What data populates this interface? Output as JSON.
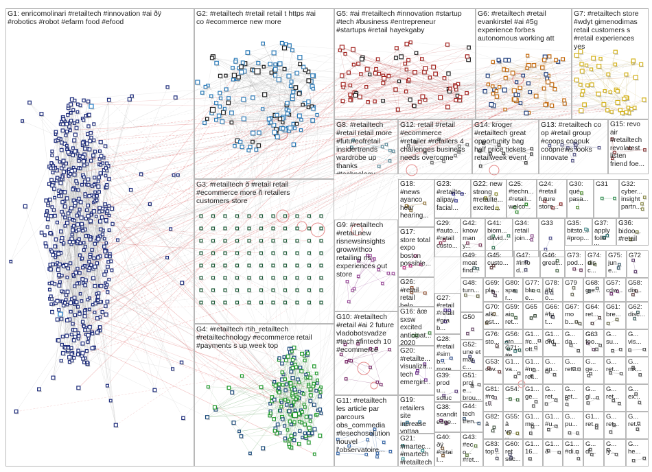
{
  "groups": [
    {
      "id": "G1",
      "label": "G1: enricomolinari #retailtech #innovation #ai ðÿ\n#robotics #robot #efarm food #efood",
      "color": "#1b2a7a"
    },
    {
      "id": "G2",
      "label": "G2: #retailtech #retail retail t https #ai\nco #ecommerce new more",
      "color": "#2a7ab8"
    },
    {
      "id": "G3",
      "label": "G3: #retailtech ð #retail retail\n#ecommerce more ñ retailers\ncustomers store",
      "color": "#1f5c3a"
    },
    {
      "id": "G4",
      "label": "G4: #retailtech rtih_retailtech\n#retailtechnology #ecommerce retail\n#payments s up week top",
      "color": "#1e9a2a"
    },
    {
      "id": "G5",
      "label": "G5: #ai #retailtech #innovation #startup\n#tech #business #entrepreneur\n#startups #retail hayekgaby",
      "color": "#a3231f"
    },
    {
      "id": "G6",
      "label": "G6: #retailtech #retail\nevankirstel #ai #5g\nexperience forbes\nautonomous working att",
      "color": "#c46a0e"
    },
    {
      "id": "G7",
      "label": "G7: #retailtech store\n#wdyt gimenodimas\nretail customers s\n#retail experiences\nyes",
      "color": "#d4b21a"
    },
    {
      "id": "G8",
      "label": "G8: #retailtech\n#retail retail more\n#futureofretail\ninsidertrends\nwardrobe up\nthanks\n#technology",
      "color": "#5a8a9a"
    },
    {
      "id": "G9",
      "label": "G9: #retailtech\n#retail new\nrisnewsinsights\ngrowwithco\nretailing ris\nexperiences out\nstore",
      "color": "#9a4a9a"
    },
    {
      "id": "G10",
      "label": "G10: #retailtech\n#retail #ai 2 future\nvladobotsvadze\n#tech #fintech 10\n#ecommerce",
      "color": "#7a2a6a"
    },
    {
      "id": "G11",
      "label": "G11: #retailtech\nles article par\nparcours\nobs_commedia\n#lesechosolution\nnouvel\nl'observatoire...",
      "color": "#3a6aaa"
    },
    {
      "id": "G12",
      "label": "G12: retail #retail\n#ecommerce\n#retailer #retailers 4\nchallenges business\nneeds overcome",
      "color": "#6a6a6a"
    },
    {
      "id": "G13",
      "label": "G13: #retailtech co\nop #retail group\n#coops coopuk\ncoopnews looks\ninnovate",
      "color": "#5a5a8a"
    },
    {
      "id": "G14",
      "label": "G14: kroger\n#retailtech great\nopportunity bag\nhalf price tickets\nretailweek event",
      "color": "#3a3a3a"
    },
    {
      "id": "G15",
      "label": "G15: revo\nair\n#retailtech\nrevolatest\nlisten\nfriend foe...",
      "color": "#8a3a3a"
    },
    {
      "id": "G16",
      "label": "G16: âœ\nsxsw\nexcited\nanticipat...\n2020",
      "color": "#4a8a4a"
    },
    {
      "id": "G17",
      "label": "G17:\nstore total\nexpo\nboston\npossible...",
      "color": "#c03a8a"
    },
    {
      "id": "G18",
      "label": "G18:\n#news\nayanco\nhear\nhearing...",
      "color": "#8a6a2a"
    },
    {
      "id": "G19",
      "label": "G19:\nretailers\nsite\nincrease\nyottaa\n...",
      "color": "#2a6a8a"
    },
    {
      "id": "G20",
      "label": "G20:\n#retailte...\nvisualiza...\ntech\nemergin...",
      "color": "#6a2a8a"
    },
    {
      "id": "G21",
      "label": "G21:\n#martec...\n#martech\n#retailtech",
      "color": "#2a8a8a"
    },
    {
      "id": "G22",
      "label": "G22: new\nstrong\n#retailte...\nexcited...",
      "color": "#8a8a2a"
    },
    {
      "id": "G23",
      "label": "G23:\n#retailte...\nalipay\nfacial...",
      "color": "#2a2a8a"
    },
    {
      "id": "G24",
      "label": "G24:\n#retail\nfuture\nstore...",
      "color": "#8a2a2a"
    },
    {
      "id": "G25",
      "label": "G25:\n#techn...\n#retail...\nwelco...",
      "color": "#2a8a2a"
    },
    {
      "id": "G26",
      "label": "G26:\n#retail\nretail\nhelp...",
      "color": "#8a4a2a"
    },
    {
      "id": "G27",
      "label": "G27:\n#retail\n#retail\n#grab...",
      "color": "#4a2a8a"
    },
    {
      "id": "G28",
      "label": "G28:\n#retail\n#simb...\nmore...",
      "color": "#2a4a8a"
    },
    {
      "id": "G29",
      "label": "G29:\n#auto...\n#retail\ncusto...",
      "color": "#8a2a4a"
    },
    {
      "id": "G30",
      "label": "G30:\nqué\npasa...",
      "color": "#4a8a2a"
    },
    {
      "id": "G31",
      "label": "G31",
      "color": "#2a8a4a"
    },
    {
      "id": "G32",
      "label": "G32:\ncyber...\ninsight\npartn...",
      "color": "#8a8a4a"
    },
    {
      "id": "G33",
      "label": "G33",
      "color": "#4a4a8a"
    },
    {
      "id": "G34",
      "label": "G34:\nretail\njoin...",
      "color": "#8a4a8a"
    },
    {
      "id": "G35",
      "label": "G35:\nbitsto...\n#prop...",
      "color": "#4a8a8a"
    },
    {
      "id": "G36",
      "label": "G36:\nbidoo...\n#retail",
      "color": "#6a6a2a"
    },
    {
      "id": "G37",
      "label": "G37:\napply\nfollow...",
      "color": "#2a6a6a"
    },
    {
      "id": "G38",
      "label": "G38:\nscandit\nedge...",
      "color": "#6a2a6a"
    },
    {
      "id": "G39",
      "label": "G39:\nprodu...\nsoluci...",
      "color": "#5a3a7a"
    },
    {
      "id": "G40",
      "label": "G40:\nðÿ\n#retail...",
      "color": "#7a5a3a"
    },
    {
      "id": "G41",
      "label": "G41:\nbiom...\ndavid...",
      "color": "#3a7a5a"
    },
    {
      "id": "G42",
      "label": "G42:\nknow\nmany...",
      "color": "#7a3a5a"
    },
    {
      "id": "G43",
      "label": "G43:\n#eco...\n#ret...",
      "color": "#5a7a3a"
    },
    {
      "id": "G44",
      "label": "G44:\ntech\ntren...",
      "color": "#3a5a7a"
    },
    {
      "id": "G45",
      "label": "G45:\ncusto...",
      "color": "#6a4a4a"
    },
    {
      "id": "G46",
      "label": "G46:\ngreat...",
      "color": "#4a6a4a"
    },
    {
      "id": "G47",
      "label": "G47:\n#infod...",
      "color": "#4a4a6a"
    },
    {
      "id": "G48",
      "label": "G48:\nturn...",
      "color": "#6a6a4a"
    },
    {
      "id": "G49",
      "label": "G49:\nmoat\nfind...",
      "color": "#4a6a6a"
    },
    {
      "id": "G50",
      "label": "G50",
      "color": "#6a4a6a"
    },
    {
      "id": "G51",
      "label": "G51:\nproje...\nbrou...",
      "color": "#5a5a5a"
    },
    {
      "id": "G52",
      "label": "G52:\nune et\nmarc...",
      "color": "#3a3a6a"
    },
    {
      "id": "G53",
      "label": "G53:\ncov...",
      "color": "#6a3a3a"
    },
    {
      "id": "G54",
      "label": "G54:\n...",
      "color": "#3a6a3a"
    },
    {
      "id": "G55",
      "label": "G55:\nâ\nvou...",
      "color": "#7a7a3a"
    },
    {
      "id": "G56",
      "label": "G56:\nsto...",
      "color": "#3a7a7a"
    },
    {
      "id": "G57",
      "label": "G57:\ncdw...",
      "color": "#7a3a7a"
    },
    {
      "id": "G58",
      "label": "G58:\ndis...",
      "color": "#5a3a3a"
    },
    {
      "id": "G59",
      "label": "G59:\nai\nret...",
      "color": "#3a5a3a"
    },
    {
      "id": "G60",
      "label": "G60:\nret\nsuc...",
      "color": "#3a3a5a"
    },
    {
      "id": "G61",
      "label": "G61:\nbre...",
      "color": "#5a5a3a"
    },
    {
      "id": "G62",
      "label": "G62:\ndisc...",
      "color": "#3a5a5a"
    },
    {
      "id": "G63",
      "label": "G63",
      "color": "#5a3a5a"
    },
    {
      "id": "G64",
      "label": "G64:\nret...",
      "color": "#4a3a3a"
    },
    {
      "id": "G65",
      "label": "G65",
      "color": "#3a4a3a"
    },
    {
      "id": "G66",
      "label": "G66:\n#fut...",
      "color": "#3a3a4a"
    },
    {
      "id": "G67",
      "label": "G67:\nmob...",
      "color": "#4a4a3a"
    },
    {
      "id": "G68",
      "label": "G68:\ngre...",
      "color": "#3a4a4a"
    },
    {
      "id": "G69",
      "label": "G69:\npla...",
      "color": "#4a3a4a"
    },
    {
      "id": "G70",
      "label": "G70:\nalk...\nest...",
      "color": "#6a5a3a"
    },
    {
      "id": "G71",
      "label": "G71:\n#ec...",
      "color": "#3a6a5a"
    },
    {
      "id": "G72",
      "label": "G72",
      "color": "#5a3a6a"
    },
    {
      "id": "G73",
      "label": "G73:\npod...",
      "color": "#6a3a5a"
    },
    {
      "id": "G74",
      "label": "G74:\ndisc...",
      "color": "#5a6a3a"
    },
    {
      "id": "G75",
      "label": "G75:\njune...",
      "color": "#3a5a6a"
    },
    {
      "id": "G76",
      "label": "G76:\nsto...",
      "color": "#6a5a5a"
    },
    {
      "id": "G77",
      "label": "G77:\nblue...",
      "color": "#5a6a5a"
    },
    {
      "id": "G78",
      "label": "G78:\n#blo...",
      "color": "#5a5a6a"
    },
    {
      "id": "G79",
      "label": "G79",
      "color": "#6a6a5a"
    },
    {
      "id": "G80",
      "label": "G80:\nspar...",
      "color": "#5a6a6a"
    },
    {
      "id": "G81",
      "label": "G81:\n#ret...",
      "color": "#6a5a6a"
    },
    {
      "id": "G82",
      "label": "G82:\nâ",
      "color": "#4a5a4a"
    },
    {
      "id": "G83",
      "label": "G83:\ntop...",
      "color": "#4a4a5a"
    },
    {
      "id": "G1x",
      "label": "G1...\n#c...\nott...",
      "color": "#555"
    },
    {
      "id": "G1y",
      "label": "G1...\nord...",
      "color": "#555"
    },
    {
      "id": "G1z",
      "label": "G1...\nva...",
      "color": "#555"
    },
    {
      "id": "Gg1",
      "label": "G...\nfoo...",
      "color": "#555"
    },
    {
      "id": "Gg2",
      "label": "G...\nvis...",
      "color": "#555"
    },
    {
      "id": "Gg3",
      "label": "G1...\n#nr...\nret...",
      "color": "#555"
    },
    {
      "id": "Gg4",
      "label": "G...\nap...",
      "color": "#555"
    },
    {
      "id": "Gg5",
      "label": "G...\nret...",
      "color": "#555"
    },
    {
      "id": "Gg6",
      "label": "G...\nge...",
      "color": "#555"
    },
    {
      "id": "Gg7",
      "label": "G...\nret...",
      "color": "#555"
    },
    {
      "id": "Gg8",
      "label": "G1...\nge...",
      "color": "#555"
    },
    {
      "id": "Gg9",
      "label": "G...\nret...",
      "color": "#555"
    },
    {
      "id": "Gg10",
      "label": "G...\nret...",
      "color": "#555"
    },
    {
      "id": "Gg11",
      "label": "G...\ngl...",
      "color": "#555"
    },
    {
      "id": "Gg12",
      "label": "G...\nnik...",
      "color": "#555"
    },
    {
      "id": "Gg13",
      "label": "G1...\nme...",
      "color": "#555"
    },
    {
      "id": "Gg14",
      "label": "G1...\n#u...",
      "color": "#555"
    },
    {
      "id": "Gg15",
      "label": "G...\nret...",
      "color": "#555"
    },
    {
      "id": "Gg16",
      "label": "G...\nex...",
      "color": "#555"
    },
    {
      "id": "Gg17",
      "label": "G...\npu...",
      "color": "#555"
    },
    {
      "id": "Gg18",
      "label": "G1...\nret...",
      "color": "#555"
    },
    {
      "id": "Gg19",
      "label": "G...\nret...",
      "color": "#555"
    },
    {
      "id": "Gg20",
      "label": "G...\nret...",
      "color": "#555"
    },
    {
      "id": "Gg21",
      "label": "G...\nsu...",
      "color": "#555"
    },
    {
      "id": "Gg22",
      "label": "G1...\n16...",
      "color": "#555"
    },
    {
      "id": "Gg23",
      "label": "G1...\nð",
      "color": "#555"
    },
    {
      "id": "Gg24",
      "label": "G1...\n#di...",
      "color": "#555"
    },
    {
      "id": "Gg25",
      "label": "G...\ndi...",
      "color": "#555"
    },
    {
      "id": "Gg26",
      "label": "G...\nly...",
      "color": "#555"
    },
    {
      "id": "Gg27",
      "label": "G...\nhe...",
      "color": "#555"
    },
    {
      "id": "Gg28",
      "label": "G...\nda...",
      "color": "#555"
    }
  ]
}
